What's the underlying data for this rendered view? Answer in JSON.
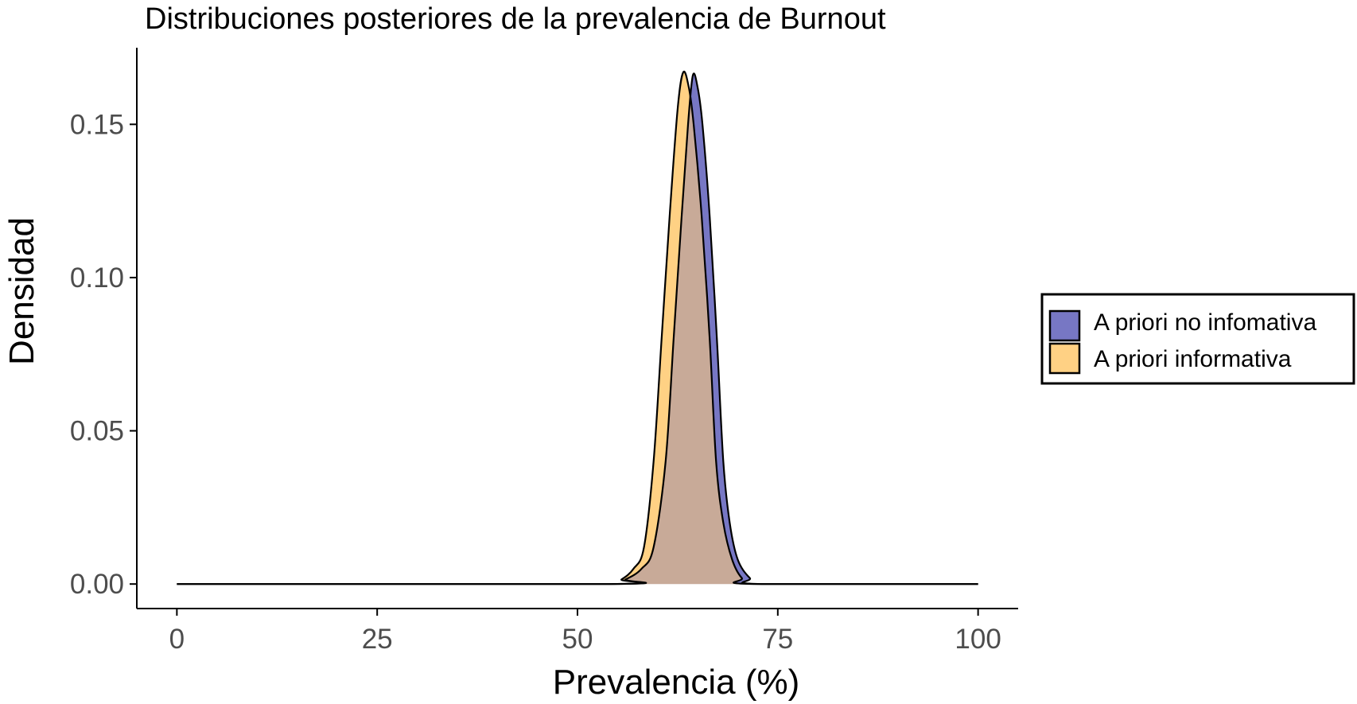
{
  "chart_data": {
    "type": "area",
    "title": "Distribuciones posteriores de la prevalencia de Burnout",
    "xlabel": "Prevalencia (%)",
    "ylabel": "Densidad",
    "xlim": [
      -5,
      105
    ],
    "ylim": [
      -0.008,
      0.175
    ],
    "x_ticks": [
      0,
      25,
      50,
      75,
      100
    ],
    "x_tick_labels": [
      "0",
      "25",
      "50",
      "75",
      "100"
    ],
    "y_ticks": [
      0.0,
      0.05,
      0.1,
      0.15
    ],
    "y_tick_labels": [
      "0.00",
      "0.05",
      "0.10",
      "0.15"
    ],
    "grid": false,
    "legend_position": "right",
    "series": [
      {
        "name": "A priori no infomativa",
        "color": "#7777c4",
        "points": [
          [
            0,
            0
          ],
          [
            54,
            0
          ],
          [
            56,
            0.0015
          ],
          [
            58,
            0.005
          ],
          [
            59.5,
            0.012
          ],
          [
            61,
            0.04
          ],
          [
            62,
            0.08
          ],
          [
            63,
            0.12
          ],
          [
            63.8,
            0.15
          ],
          [
            64.4,
            0.166
          ],
          [
            65,
            0.162
          ],
          [
            65.6,
            0.15
          ],
          [
            66.5,
            0.12
          ],
          [
            67.4,
            0.08
          ],
          [
            68.2,
            0.04
          ],
          [
            69,
            0.02
          ],
          [
            70,
            0.008
          ],
          [
            71.5,
            0.002
          ],
          [
            73,
            0
          ],
          [
            100,
            0
          ]
        ]
      },
      {
        "name": "A priori informativa",
        "color": "#ffd184",
        "points": [
          [
            0,
            0
          ],
          [
            54,
            0
          ],
          [
            55.5,
            0.0015
          ],
          [
            57,
            0.005
          ],
          [
            58.3,
            0.012
          ],
          [
            59.5,
            0.04
          ],
          [
            60.5,
            0.08
          ],
          [
            61.5,
            0.12
          ],
          [
            62.5,
            0.155
          ],
          [
            63.2,
            0.167
          ],
          [
            63.9,
            0.162
          ],
          [
            64.5,
            0.15
          ],
          [
            65.5,
            0.12
          ],
          [
            66.5,
            0.08
          ],
          [
            67.3,
            0.04
          ],
          [
            68.2,
            0.02
          ],
          [
            69.3,
            0.008
          ],
          [
            70.5,
            0.002
          ],
          [
            72,
            0
          ],
          [
            100,
            0
          ]
        ]
      }
    ],
    "overlap_color": "#c8aa98"
  }
}
